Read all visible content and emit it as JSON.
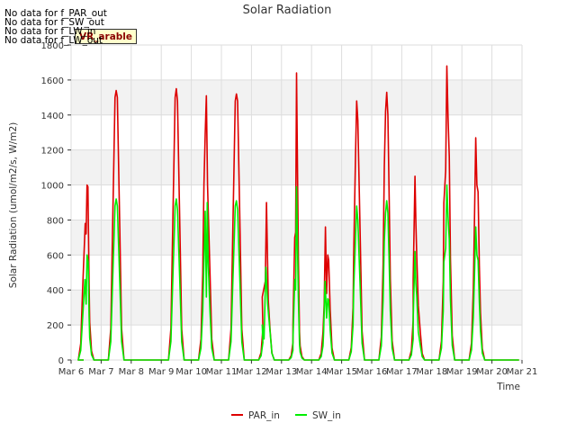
{
  "colors": {
    "par": "#dd0000",
    "sw": "#00ee00",
    "band": "#f2f2f2",
    "grid": "#dddddd"
  },
  "messages": [
    "No data for f_PAR_out",
    "No data for f_SW_out",
    "No data for f_LW_in",
    "No data for f_LW_out"
  ],
  "badge": "VR_arable",
  "chart_data": {
    "type": "line",
    "title": "Solar Radiation",
    "xlabel": "Time",
    "ylabel": "Solar Radiation (umol/m2/s, W/m2)",
    "xlim": [
      6,
      21
    ],
    "ylim": [
      0,
      1800
    ],
    "yticks": [
      0,
      200,
      400,
      600,
      800,
      1000,
      1200,
      1400,
      1600,
      1800
    ],
    "xticks": [
      {
        "x": 6,
        "label": "Mar 6"
      },
      {
        "x": 7,
        "label": "Mar 7"
      },
      {
        "x": 8,
        "label": "Mar 8"
      },
      {
        "x": 9,
        "label": "Mar 9"
      },
      {
        "x": 10,
        "label": "Mar 10"
      },
      {
        "x": 11,
        "label": "Mar 11"
      },
      {
        "x": 12,
        "label": "Mar 12"
      },
      {
        "x": 13,
        "label": "Mar 13"
      },
      {
        "x": 14,
        "label": "Mar 14"
      },
      {
        "x": 15,
        "label": "Mar 15"
      },
      {
        "x": 16,
        "label": "Mar 16"
      },
      {
        "x": 17,
        "label": "Mar 17"
      },
      {
        "x": 18,
        "label": "Mar 18"
      },
      {
        "x": 19,
        "label": "Mar 19"
      },
      {
        "x": 20,
        "label": "Mar 20"
      },
      {
        "x": 21,
        "label": "Mar 21"
      }
    ],
    "data_start": 6.42,
    "data_end": 20.9,
    "series": [
      {
        "name": "PAR_in",
        "color": "#dd0000",
        "days": [
          {
            "center": 6.5,
            "peaks": [
              [
                6.47,
                780
              ],
              [
                6.5,
                720
              ],
              [
                6.53,
                1000
              ],
              [
                6.56,
                990
              ],
              [
                6.6,
                430
              ]
            ]
          },
          {
            "center": 7.5,
            "peaks": [
              [
                7.46,
                1500
              ],
              [
                7.5,
                1540
              ],
              [
                7.54,
                1500
              ]
            ]
          },
          {
            "center": 9.5,
            "peaks": [
              [
                9.46,
                1500
              ],
              [
                9.5,
                1550
              ],
              [
                9.54,
                1480
              ]
            ]
          },
          {
            "center": 10.5,
            "peaks": [
              [
                10.42,
                1000
              ],
              [
                10.46,
                1290
              ],
              [
                10.5,
                1510
              ],
              [
                10.54,
                1000
              ]
            ]
          },
          {
            "center": 11.5,
            "peaks": [
              [
                11.46,
                1480
              ],
              [
                11.5,
                1520
              ],
              [
                11.54,
                1480
              ]
            ]
          },
          {
            "center": 12.5,
            "peaks": [
              [
                12.36,
                360
              ],
              [
                12.46,
                450
              ],
              [
                12.5,
                900
              ],
              [
                12.56,
                340
              ]
            ]
          },
          {
            "center": 13.5,
            "peaks": [
              [
                13.38,
                200
              ],
              [
                13.44,
                700
              ],
              [
                13.47,
                730
              ],
              [
                13.5,
                1640
              ],
              [
                13.56,
                600
              ],
              [
                13.6,
                160
              ]
            ]
          },
          {
            "center": 14.5,
            "peaks": [
              [
                14.42,
                320
              ],
              [
                14.46,
                760
              ],
              [
                14.5,
                380
              ],
              [
                14.54,
                600
              ],
              [
                14.57,
                570
              ]
            ]
          },
          {
            "center": 15.5,
            "peaks": [
              [
                15.4,
                600
              ],
              [
                15.46,
                1160
              ],
              [
                15.5,
                1480
              ],
              [
                15.54,
                1370
              ]
            ]
          },
          {
            "center": 16.5,
            "peaks": [
              [
                16.42,
                1100
              ],
              [
                16.46,
                1420
              ],
              [
                16.5,
                1530
              ],
              [
                16.54,
                1400
              ],
              [
                16.58,
                930
              ]
            ]
          },
          {
            "center": 17.5,
            "peaks": [
              [
                17.38,
                460
              ],
              [
                17.44,
                1050
              ],
              [
                17.47,
                780
              ],
              [
                17.5,
                590
              ],
              [
                17.55,
                310
              ]
            ]
          },
          {
            "center": 18.5,
            "peaks": [
              [
                18.4,
                900
              ],
              [
                18.46,
                1080
              ],
              [
                18.5,
                1680
              ],
              [
                18.54,
                1390
              ],
              [
                18.58,
                1160
              ]
            ]
          },
          {
            "center": 19.5,
            "peaks": [
              [
                19.42,
                800
              ],
              [
                19.46,
                1270
              ],
              [
                19.5,
                1000
              ],
              [
                19.54,
                960
              ],
              [
                19.58,
                540
              ]
            ]
          }
        ]
      },
      {
        "name": "SW_in",
        "color": "#00ee00",
        "days": [
          {
            "center": 6.5,
            "peaks": [
              [
                6.46,
                460
              ],
              [
                6.5,
                320
              ],
              [
                6.53,
                600
              ],
              [
                6.57,
                560
              ],
              [
                6.6,
                250
              ]
            ]
          },
          {
            "center": 7.5,
            "peaks": [
              [
                7.46,
                880
              ],
              [
                7.5,
                920
              ],
              [
                7.54,
                880
              ]
            ]
          },
          {
            "center": 9.5,
            "peaks": [
              [
                9.46,
                880
              ],
              [
                9.5,
                920
              ],
              [
                9.54,
                860
              ]
            ]
          },
          {
            "center": 10.5,
            "peaks": [
              [
                10.42,
                560
              ],
              [
                10.46,
                850
              ],
              [
                10.5,
                360
              ],
              [
                10.53,
                900
              ],
              [
                10.56,
                560
              ]
            ]
          },
          {
            "center": 11.5,
            "peaks": [
              [
                11.46,
                880
              ],
              [
                11.5,
                910
              ],
              [
                11.54,
                860
              ]
            ]
          },
          {
            "center": 12.5,
            "peaks": [
              [
                12.36,
                200
              ],
              [
                12.42,
                120
              ],
              [
                12.48,
                530
              ],
              [
                12.54,
                320
              ]
            ]
          },
          {
            "center": 13.5,
            "peaks": [
              [
                13.38,
                110
              ],
              [
                13.44,
                460
              ],
              [
                13.47,
                400
              ],
              [
                13.5,
                990
              ],
              [
                13.56,
                360
              ],
              [
                13.6,
                90
              ]
            ]
          },
          {
            "center": 14.5,
            "peaks": [
              [
                14.4,
                160
              ],
              [
                14.45,
                450
              ],
              [
                14.5,
                240
              ],
              [
                14.54,
                350
              ],
              [
                14.57,
                340
              ]
            ]
          },
          {
            "center": 15.5,
            "peaks": [
              [
                15.4,
                400
              ],
              [
                15.46,
                700
              ],
              [
                15.5,
                880
              ],
              [
                15.54,
                800
              ]
            ]
          },
          {
            "center": 16.5,
            "peaks": [
              [
                16.42,
                680
              ],
              [
                16.46,
                840
              ],
              [
                16.5,
                910
              ],
              [
                16.54,
                840
              ],
              [
                16.58,
                560
              ]
            ]
          },
          {
            "center": 17.5,
            "peaks": [
              [
                17.38,
                240
              ],
              [
                17.44,
                620
              ],
              [
                17.47,
                440
              ],
              [
                17.5,
                360
              ],
              [
                17.55,
                160
              ]
            ]
          },
          {
            "center": 18.5,
            "peaks": [
              [
                18.4,
                560
              ],
              [
                18.46,
                640
              ],
              [
                18.5,
                1000
              ],
              [
                18.54,
                820
              ],
              [
                18.58,
                690
              ]
            ]
          },
          {
            "center": 19.5,
            "peaks": [
              [
                19.42,
                480
              ],
              [
                19.46,
                760
              ],
              [
                19.5,
                600
              ],
              [
                19.54,
                570
              ],
              [
                19.58,
                330
              ]
            ]
          }
        ]
      }
    ]
  }
}
